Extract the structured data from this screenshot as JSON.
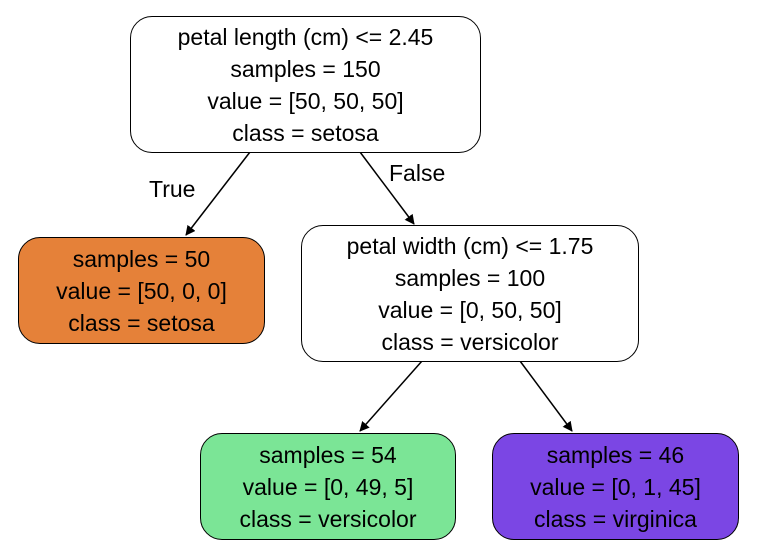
{
  "nodes": {
    "root": {
      "condition": "petal length (cm) <= 2.45",
      "samples": "samples = 150",
      "value": "value = [50, 50, 50]",
      "class": "class = setosa",
      "fill": "#ffffff"
    },
    "left_leaf": {
      "samples": "samples = 50",
      "value": "value = [50, 0, 0]",
      "class": "class = setosa",
      "fill": "#e58139"
    },
    "right": {
      "condition": "petal width (cm) <= 1.75",
      "samples": "samples = 100",
      "value": "value = [0, 50, 50]",
      "class": "class = versicolor",
      "fill": "#ffffff"
    },
    "right_left_leaf": {
      "samples": "samples = 54",
      "value": "value = [0, 49, 5]",
      "class": "class = versicolor",
      "fill": "#7be596"
    },
    "right_right_leaf": {
      "samples": "samples = 46",
      "value": "value = [0, 1, 45]",
      "class": "class = virginica",
      "fill": "#7b46e4"
    }
  },
  "edge_labels": {
    "true_label": "True",
    "false_label": "False"
  }
}
